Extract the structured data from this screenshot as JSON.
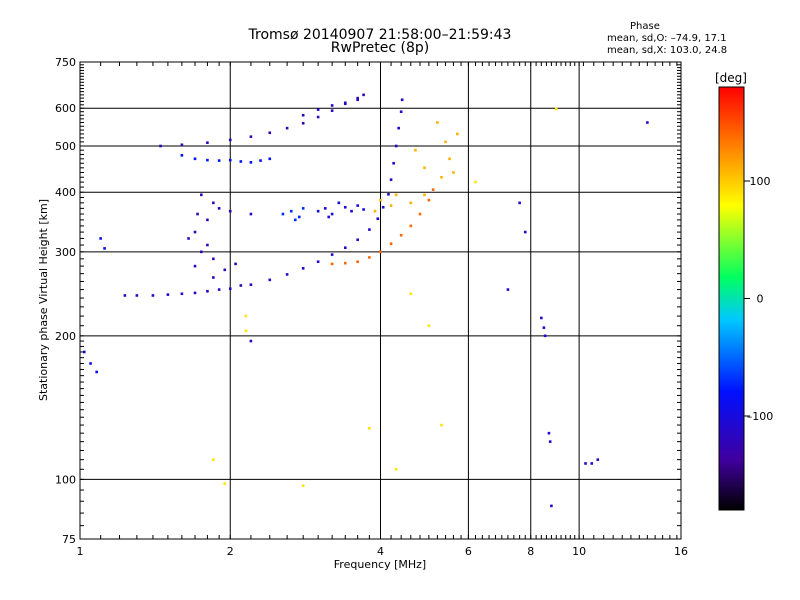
{
  "header": {
    "title_line1": "Tromsø 20140907 21:58:00–21:59:43",
    "title_line2": "RwPretec (8p)",
    "phase_title": "Phase",
    "phase_line1": "mean, sd,O: –74.9, 17.1",
    "phase_line2": "mean, sd,X: 103.0, 24.8"
  },
  "chart_data": {
    "type": "scatter",
    "title": "Tromsø 20140907 21:58:00–21:59:43",
    "subtitle": "RwPretec (8p)",
    "xlabel": "Frequency [MHz]",
    "ylabel": "Stationary phase Virtual Height [km]",
    "x_scale": "log",
    "y_scale": "log",
    "xlim": [
      1,
      16
    ],
    "ylim": [
      75,
      750
    ],
    "x_ticks": [
      1,
      2,
      4,
      6,
      8,
      10,
      16
    ],
    "y_ticks": [
      75,
      100,
      200,
      300,
      400,
      500,
      600,
      750
    ],
    "x_tick_labels": [
      "1",
      "2",
      "4",
      "6",
      "8",
      "10",
      "16"
    ],
    "y_tick_labels": [
      "75",
      "100",
      "200",
      "300",
      "400",
      "500",
      "600",
      "750"
    ],
    "grid": true,
    "colorbar": {
      "label": "[deg]",
      "range": [
        -180,
        180
      ],
      "ticks": [
        100,
        0,
        -100
      ],
      "tick_labels": [
        "100",
        "0",
        "–100"
      ],
      "colormap": "rainbow"
    },
    "series": [
      {
        "color_value": -110,
        "points": [
          [
            1.23,
            243
          ],
          [
            1.3,
            243
          ],
          [
            1.4,
            243
          ],
          [
            1.5,
            244
          ],
          [
            1.6,
            245
          ],
          [
            1.7,
            246
          ],
          [
            1.8,
            248
          ],
          [
            2.0,
            251
          ],
          [
            2.2,
            256
          ],
          [
            2.4,
            262
          ],
          [
            2.6,
            269
          ],
          [
            2.8,
            277
          ],
          [
            3.0,
            286
          ],
          [
            3.2,
            296
          ],
          [
            3.4,
            306
          ],
          [
            3.6,
            318
          ],
          [
            3.8,
            334
          ],
          [
            3.95,
            352
          ],
          [
            4.05,
            372
          ],
          [
            4.15,
            396
          ],
          [
            4.2,
            425
          ],
          [
            4.25,
            460
          ],
          [
            4.3,
            500
          ],
          [
            4.35,
            545
          ],
          [
            4.4,
            590
          ],
          [
            4.42,
            625
          ]
        ]
      },
      {
        "color_value": -120,
        "points": [
          [
            1.45,
            500
          ],
          [
            1.6,
            503
          ],
          [
            1.8,
            508
          ],
          [
            2.0,
            515
          ],
          [
            2.2,
            523
          ],
          [
            2.4,
            533
          ],
          [
            2.6,
            545
          ],
          [
            2.8,
            558
          ],
          [
            3.0,
            575
          ],
          [
            3.2,
            593
          ],
          [
            3.4,
            613
          ],
          [
            3.6,
            630
          ],
          [
            3.7,
            640
          ]
        ]
      },
      {
        "color_value": -115,
        "points": [
          [
            2.8,
            580
          ],
          [
            3.0,
            596
          ],
          [
            3.2,
            608
          ],
          [
            3.4,
            616
          ],
          [
            3.6,
            625
          ]
        ]
      },
      {
        "color_value": 140,
        "points": [
          [
            3.2,
            283
          ],
          [
            3.4,
            284
          ],
          [
            3.6,
            286
          ],
          [
            3.8,
            292
          ],
          [
            4.0,
            300
          ],
          [
            4.2,
            312
          ],
          [
            4.4,
            325
          ],
          [
            4.6,
            340
          ],
          [
            4.8,
            360
          ],
          [
            5.0,
            385
          ],
          [
            5.1,
            405
          ]
        ]
      },
      {
        "color_value": -80,
        "points": [
          [
            1.6,
            478
          ],
          [
            1.7,
            470
          ],
          [
            1.8,
            467
          ],
          [
            1.9,
            466
          ],
          [
            2.0,
            467
          ],
          [
            2.1,
            464
          ],
          [
            2.2,
            462
          ],
          [
            2.3,
            466
          ],
          [
            2.4,
            470
          ]
        ]
      },
      {
        "color_value": -70,
        "points": [
          [
            2.55,
            360
          ],
          [
            2.65,
            365
          ],
          [
            2.75,
            355
          ],
          [
            2.8,
            370
          ],
          [
            2.7,
            350
          ]
        ]
      },
      {
        "color_value": -120,
        "points": [
          [
            1.65,
            320
          ],
          [
            1.75,
            300
          ],
          [
            1.85,
            290
          ],
          [
            1.7,
            330
          ],
          [
            1.8,
            350
          ],
          [
            1.9,
            370
          ],
          [
            1.75,
            395
          ],
          [
            1.85,
            380
          ],
          [
            2.0,
            365
          ],
          [
            2.2,
            360
          ],
          [
            1.7,
            280
          ],
          [
            1.85,
            265
          ],
          [
            1.95,
            275
          ],
          [
            2.05,
            283
          ],
          [
            2.1,
            255
          ],
          [
            1.8,
            310
          ],
          [
            1.72,
            360
          ],
          [
            1.9,
            250
          ]
        ]
      },
      {
        "color_value": -100,
        "points": [
          [
            3.0,
            365
          ],
          [
            3.1,
            370
          ],
          [
            3.2,
            360
          ],
          [
            3.4,
            372
          ],
          [
            3.5,
            365
          ],
          [
            3.6,
            375
          ],
          [
            3.7,
            368
          ],
          [
            3.3,
            380
          ],
          [
            3.15,
            355
          ]
        ]
      },
      {
        "color_value": 110,
        "points": [
          [
            4.0,
            385
          ],
          [
            4.3,
            395
          ],
          [
            4.6,
            380
          ],
          [
            4.9,
            395
          ],
          [
            5.3,
            430
          ],
          [
            5.5,
            470
          ],
          [
            5.7,
            530
          ],
          [
            5.2,
            560
          ],
          [
            4.7,
            490
          ],
          [
            4.9,
            450
          ],
          [
            3.9,
            365
          ],
          [
            4.2,
            375
          ],
          [
            5.6,
            440
          ],
          [
            5.4,
            510
          ]
        ]
      },
      {
        "color_value": -90,
        "points": [
          [
            1.05,
            175
          ],
          [
            1.08,
            168
          ],
          [
            1.02,
            185
          ],
          [
            1.1,
            320
          ],
          [
            1.12,
            305
          ]
        ]
      },
      {
        "color_value": 90,
        "points": [
          [
            9.0,
            598
          ],
          [
            6.2,
            420
          ],
          [
            4.6,
            245
          ],
          [
            5.0,
            210
          ],
          [
            3.8,
            128
          ],
          [
            4.3,
            105
          ],
          [
            2.8,
            97
          ],
          [
            1.95,
            98
          ],
          [
            1.85,
            110
          ],
          [
            2.15,
            220
          ],
          [
            2.15,
            205
          ],
          [
            5.3,
            130
          ]
        ]
      },
      {
        "color_value": -110,
        "points": [
          [
            8.4,
            218
          ],
          [
            8.5,
            208
          ],
          [
            8.55,
            200
          ],
          [
            8.7,
            125
          ],
          [
            8.75,
            120
          ],
          [
            8.8,
            88
          ],
          [
            10.3,
            108
          ],
          [
            10.6,
            108
          ],
          [
            10.9,
            110
          ],
          [
            13.7,
            560
          ],
          [
            7.6,
            380
          ],
          [
            7.8,
            330
          ],
          [
            7.2,
            250
          ],
          [
            2.2,
            195
          ]
        ]
      }
    ]
  }
}
